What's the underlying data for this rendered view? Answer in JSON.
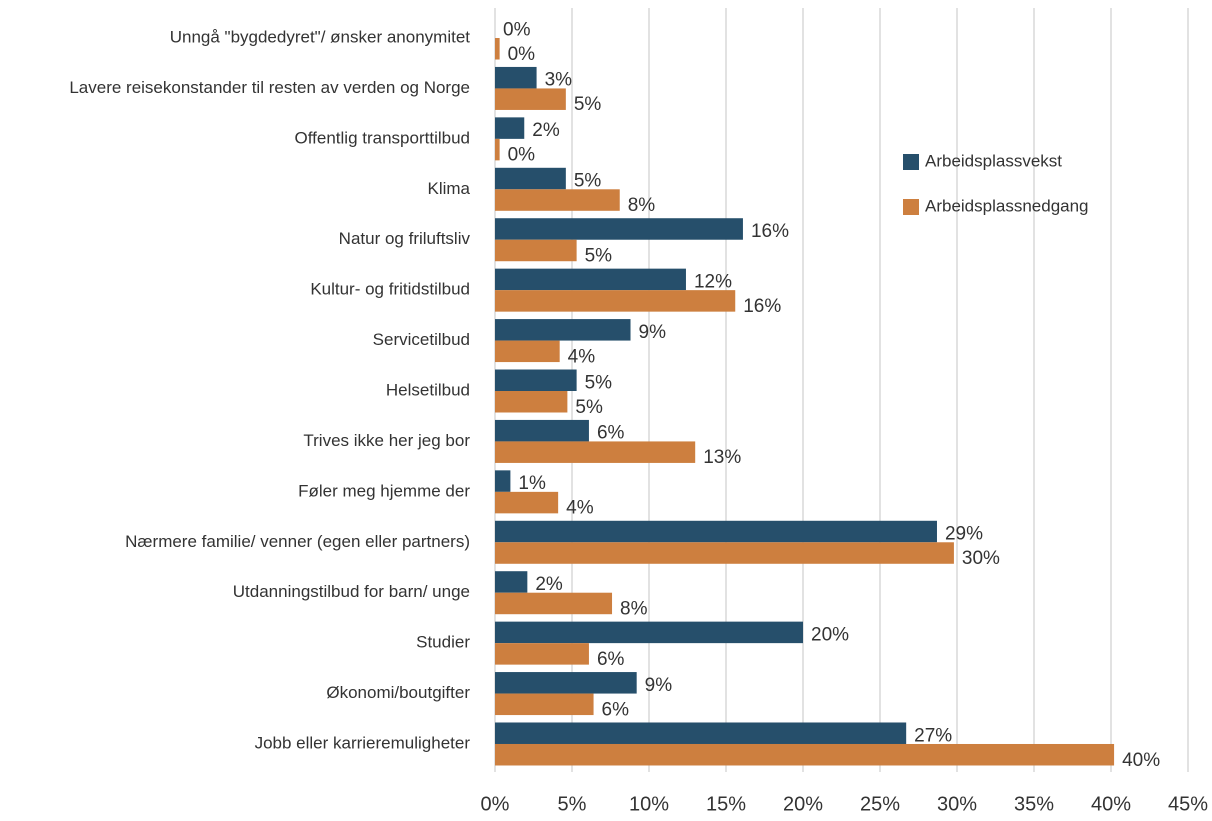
{
  "chart_data": {
    "type": "bar",
    "orientation": "horizontal",
    "categories": [
      "Unngå \"bygdedyret\"/ ønsker anonymitet",
      "Lavere reisekonstander til resten av verden og Norge",
      "Offentlig transporttilbud",
      "Klima",
      "Natur og friluftsliv",
      "Kultur- og fritidstilbud",
      "Servicetilbud",
      "Helsetilbud",
      "Trives ikke her jeg bor",
      "Føler meg hjemme der",
      "Nærmere familie/ venner (egen eller partners)",
      "Utdanningstilbud for barn/ unge",
      "Studier",
      "Økonomi/boutgifter",
      "Jobb eller karrieremuligheter"
    ],
    "series": [
      {
        "name": "Arbeidsplassvekst",
        "color": "#264f6b",
        "values": [
          0,
          2.7,
          1.9,
          4.6,
          16.1,
          12.4,
          8.8,
          5.3,
          6.1,
          1.0,
          28.7,
          2.1,
          20.0,
          9.2,
          26.7
        ],
        "value_labels": [
          "0%",
          "3%",
          "2%",
          "5%",
          "16%",
          "12%",
          "9%",
          "5%",
          "6%",
          "1%",
          "29%",
          "2%",
          "20%",
          "9%",
          "27%"
        ]
      },
      {
        "name": "Arbeidsplassnedgang",
        "color": "#cd7f3f",
        "values": [
          0.3,
          4.6,
          0.3,
          8.1,
          5.3,
          15.6,
          4.2,
          4.7,
          13.0,
          4.1,
          29.8,
          7.6,
          6.1,
          6.4,
          40.2
        ],
        "value_labels": [
          "0%",
          "5%",
          "0%",
          "8%",
          "5%",
          "16%",
          "4%",
          "5%",
          "13%",
          "4%",
          "30%",
          "8%",
          "6%",
          "6%",
          "40%"
        ]
      }
    ],
    "xlim": [
      0,
      45
    ],
    "xticks": [
      {
        "value": 0,
        "label": "0%"
      },
      {
        "value": 5,
        "label": "5%"
      },
      {
        "value": 10,
        "label": "10%"
      },
      {
        "value": 15,
        "label": "15%"
      },
      {
        "value": 20,
        "label": "20%"
      },
      {
        "value": 25,
        "label": "25%"
      },
      {
        "value": 30,
        "label": "30%"
      },
      {
        "value": 35,
        "label": "35%"
      },
      {
        "value": 40,
        "label": "40%"
      },
      {
        "value": 45,
        "label": "45%"
      }
    ],
    "grid": true,
    "legend": "right"
  }
}
